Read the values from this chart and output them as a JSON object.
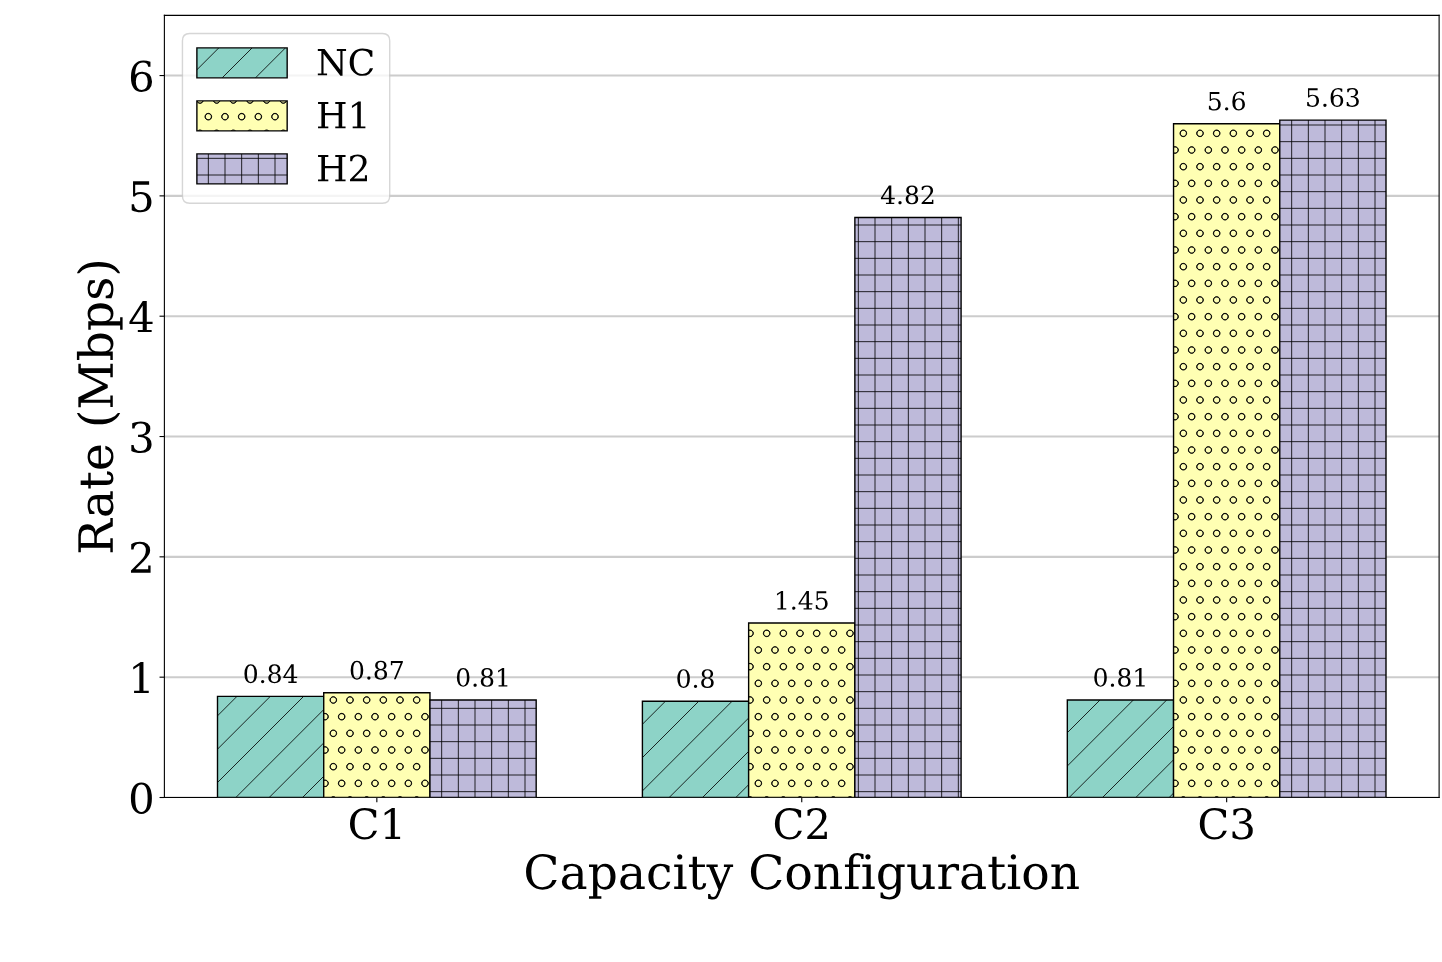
{
  "chart_data": {
    "type": "bar",
    "xlabel": "Capacity Configuration",
    "ylabel": "Rate (Mbps)",
    "categories": [
      "C1",
      "C2",
      "C3"
    ],
    "series": [
      {
        "name": "NC",
        "color": "#8dd3c7",
        "values": [
          0.84,
          0.8,
          0.81
        ]
      },
      {
        "name": "H1",
        "color": "#ffffb3",
        "values": [
          0.87,
          1.45,
          5.6
        ]
      },
      {
        "name": "H2",
        "color": "#bebada",
        "values": [
          0.81,
          4.82,
          5.63
        ]
      }
    ],
    "ylim": [
      0,
      6.5
    ],
    "yticks": [
      0,
      1,
      2,
      3,
      4,
      5,
      6
    ],
    "grid": "y",
    "legend": "top left",
    "data_labels": true
  }
}
